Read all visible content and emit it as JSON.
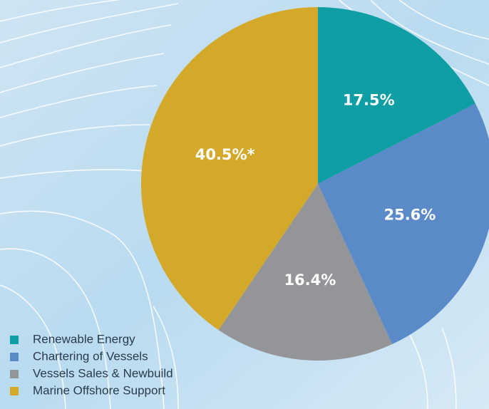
{
  "chart_data": {
    "type": "pie",
    "categories": [
      "Renewable Energy",
      "Chartering of Vessels",
      "Vessels Sales & Newbuild",
      "Marine Offshore Support"
    ],
    "values": [
      17.5,
      25.6,
      16.4,
      40.5
    ],
    "value_labels": [
      "17.5%",
      "25.6%",
      "16.4%",
      "40.5%*"
    ],
    "colors": [
      "#0f9ea4",
      "#5a8ac8",
      "#939598",
      "#d4a929"
    ],
    "legend": "bottom-left"
  }
}
